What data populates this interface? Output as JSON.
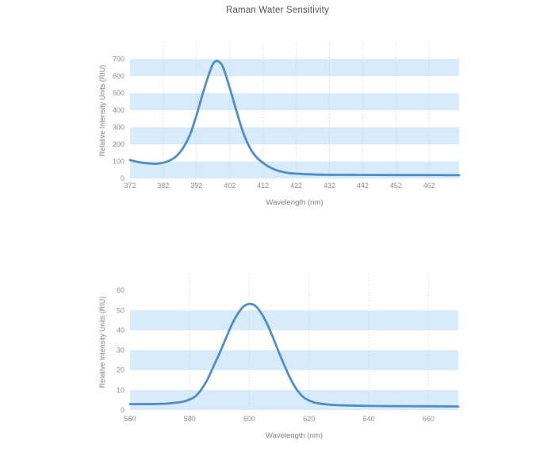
{
  "page": {
    "title": "Raman Water Sensitivity"
  },
  "colors": {
    "line": "#4e8dc7",
    "band": "#d7ebfa",
    "gridline": "#b5ddf5",
    "tick_text": "#8a8f94",
    "axis_title_text": "#7d838a",
    "title_text": "#4f545a",
    "background": "#ffffff"
  },
  "chart_data": [
    {
      "id": "uv-chart",
      "type": "line",
      "title": "Raman Water Sensitivity",
      "xlabel": "Wavelength (nm)",
      "ylabel": "Relative Intensity Units (RIU)",
      "legend": "none",
      "grid": "vertical-dotted",
      "x_range": [
        372,
        471
      ],
      "y_range": [
        0,
        795
      ],
      "x_ticks": [
        372,
        382,
        392,
        402,
        412,
        422,
        432,
        442,
        452,
        462
      ],
      "y_ticks": [
        0,
        100,
        200,
        300,
        400,
        500,
        600,
        700
      ],
      "gridlines_x": [
        382,
        392,
        402,
        412,
        422,
        432,
        442,
        452,
        462
      ],
      "bands_y": [
        [
          0,
          100
        ],
        [
          200,
          300
        ],
        [
          400,
          500
        ],
        [
          600,
          700
        ]
      ],
      "series": [
        {
          "name": "water-raman-uv",
          "points": [
            [
              372,
              108
            ],
            [
              374,
              98
            ],
            [
              376,
              91
            ],
            [
              378,
              88
            ],
            [
              380,
              86
            ],
            [
              382,
              92
            ],
            [
              384,
              106
            ],
            [
              386,
              132
            ],
            [
              388,
              180
            ],
            [
              390,
              255
            ],
            [
              392,
              370
            ],
            [
              394,
              505
            ],
            [
              396,
              625
            ],
            [
              397,
              672
            ],
            [
              398,
              689
            ],
            [
              399,
              680
            ],
            [
              400,
              652
            ],
            [
              402,
              530
            ],
            [
              404,
              398
            ],
            [
              406,
              272
            ],
            [
              408,
              182
            ],
            [
              410,
              125
            ],
            [
              412,
              92
            ],
            [
              414,
              66
            ],
            [
              416,
              49
            ],
            [
              418,
              38
            ],
            [
              420,
              31
            ],
            [
              423,
              27
            ],
            [
              426,
              24
            ],
            [
              430,
              22
            ],
            [
              435,
              21
            ],
            [
              440,
              21
            ],
            [
              450,
              20
            ],
            [
              460,
              20
            ],
            [
              471,
              19
            ]
          ]
        }
      ]
    },
    {
      "id": "visible-chart",
      "type": "line",
      "title": "",
      "xlabel": "Wavelength (nm)",
      "ylabel": "Relative Intensity Units (RIU)",
      "legend": "none",
      "grid": "vertical-dotted",
      "x_range": [
        560,
        670
      ],
      "y_range": [
        0,
        68
      ],
      "x_ticks": [
        560,
        580,
        600,
        620,
        640,
        660
      ],
      "y_ticks": [
        0,
        10,
        20,
        30,
        40,
        50,
        60
      ],
      "gridlines_x": [
        580,
        600,
        620,
        640,
        660
      ],
      "bands_y": [
        [
          0,
          10
        ],
        [
          20,
          30
        ],
        [
          40,
          50
        ]
      ],
      "series": [
        {
          "name": "water-raman-visible",
          "points": [
            [
              560,
              3
            ],
            [
              564,
              3
            ],
            [
              568,
              3
            ],
            [
              572,
              3.2
            ],
            [
              575,
              3.6
            ],
            [
              578,
              4.3
            ],
            [
              580,
              5.3
            ],
            [
              582,
              7
            ],
            [
              584,
              10.5
            ],
            [
              586,
              15.5
            ],
            [
              588,
              22
            ],
            [
              590,
              28.5
            ],
            [
              592,
              35.5
            ],
            [
              594,
              42.5
            ],
            [
              596,
              48
            ],
            [
              598,
              51.8
            ],
            [
              600,
              53.2
            ],
            [
              602,
              52.2
            ],
            [
              604,
              48.5
            ],
            [
              606,
              43
            ],
            [
              608,
              36
            ],
            [
              610,
              28.5
            ],
            [
              612,
              21.5
            ],
            [
              614,
              15
            ],
            [
              616,
              10
            ],
            [
              618,
              6.6
            ],
            [
              620,
              4.8
            ],
            [
              622,
              3.7
            ],
            [
              625,
              3
            ],
            [
              628,
              2.6
            ],
            [
              632,
              2.3
            ],
            [
              638,
              2.1
            ],
            [
              645,
              2
            ],
            [
              655,
              1.9
            ],
            [
              670,
              1.8
            ]
          ]
        }
      ]
    }
  ]
}
